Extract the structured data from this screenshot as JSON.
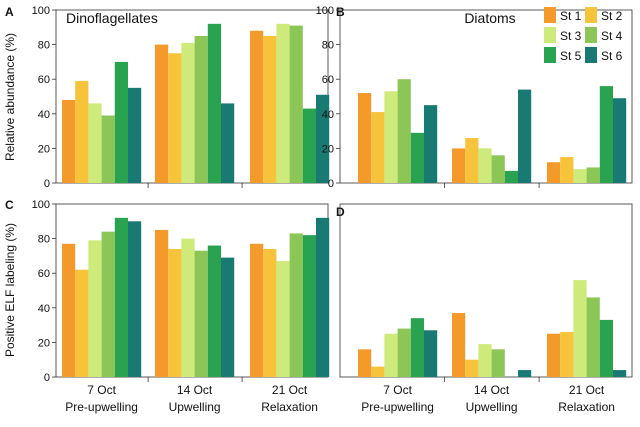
{
  "figure": {
    "y_axis_top": "Relative abundance (%)",
    "y_axis_bottom": "Positive ELF labeling (%)"
  },
  "legend": {
    "position": "top-right",
    "entries": [
      {
        "name": "St 1",
        "color": "#f39a2b"
      },
      {
        "name": "St 2",
        "color": "#f6c33a"
      },
      {
        "name": "St 3",
        "color": "#cdea7a"
      },
      {
        "name": "St 4",
        "color": "#8cc657"
      },
      {
        "name": "St 5",
        "color": "#2aa351"
      },
      {
        "name": "St 6",
        "color": "#187a73"
      }
    ]
  },
  "chart_data": [
    {
      "type": "bar",
      "panel": "A",
      "title": "Dinoflagellates",
      "ylabel": "Relative abundance (%)",
      "ylim": [
        0,
        100
      ],
      "yticks": [
        0,
        20,
        40,
        60,
        80,
        100
      ],
      "categories": [
        "7 Oct",
        "14 Oct",
        "21 Oct"
      ],
      "category_sublabels": [],
      "series": [
        {
          "name": "St 1",
          "values": [
            48,
            80,
            88
          ]
        },
        {
          "name": "St 2",
          "values": [
            59,
            75,
            85
          ]
        },
        {
          "name": "St 3",
          "values": [
            46,
            81,
            92
          ]
        },
        {
          "name": "St 4",
          "values": [
            39,
            85,
            91
          ]
        },
        {
          "name": "St 5",
          "values": [
            70,
            92,
            43
          ]
        },
        {
          "name": "St 6",
          "values": [
            55,
            46,
            51
          ]
        }
      ]
    },
    {
      "type": "bar",
      "panel": "B",
      "title": "Diatoms",
      "ylabel": "",
      "ylim": [
        0,
        100
      ],
      "yticks": [
        0,
        20,
        40,
        60,
        80,
        100
      ],
      "categories": [
        "7 Oct",
        "14 Oct",
        "21 Oct"
      ],
      "category_sublabels": [],
      "series": [
        {
          "name": "St 1",
          "values": [
            52,
            20,
            12
          ]
        },
        {
          "name": "St 2",
          "values": [
            41,
            26,
            15
          ]
        },
        {
          "name": "St 3",
          "values": [
            53,
            20,
            8
          ]
        },
        {
          "name": "St 4",
          "values": [
            60,
            16,
            9
          ]
        },
        {
          "name": "St 5",
          "values": [
            29,
            7,
            56
          ]
        },
        {
          "name": "St 6",
          "values": [
            45,
            54,
            49
          ]
        }
      ]
    },
    {
      "type": "bar",
      "panel": "C",
      "title": "",
      "ylabel": "Positive ELF labeling (%)",
      "ylim": [
        0,
        100
      ],
      "yticks": [
        0,
        20,
        40,
        60,
        80,
        100
      ],
      "categories": [
        "7 Oct",
        "14 Oct",
        "21 Oct"
      ],
      "category_sublabels": [
        "Pre-upwelling",
        "Upwelling",
        "Relaxation"
      ],
      "series": [
        {
          "name": "St 1",
          "values": [
            77,
            85,
            77
          ]
        },
        {
          "name": "St 2",
          "values": [
            62,
            74,
            74
          ]
        },
        {
          "name": "St 3",
          "values": [
            79,
            80,
            67
          ]
        },
        {
          "name": "St 4",
          "values": [
            84,
            73,
            83
          ]
        },
        {
          "name": "St 5",
          "values": [
            92,
            76,
            82
          ]
        },
        {
          "name": "St 6",
          "values": [
            90,
            69,
            92
          ]
        }
      ]
    },
    {
      "type": "bar",
      "panel": "D",
      "title": "",
      "ylabel": "",
      "ylim": [
        0,
        100
      ],
      "yticks": [],
      "categories": [
        "7 Oct",
        "14 Oct",
        "21 Oct"
      ],
      "category_sublabels": [
        "Pre-upwelling",
        "Upwelling",
        "Relaxation"
      ],
      "series": [
        {
          "name": "St 1",
          "values": [
            16,
            37,
            25
          ]
        },
        {
          "name": "St 2",
          "values": [
            6,
            10,
            26
          ]
        },
        {
          "name": "St 3",
          "values": [
            25,
            19,
            56
          ]
        },
        {
          "name": "St 4",
          "values": [
            28,
            16,
            46
          ]
        },
        {
          "name": "St 5",
          "values": [
            34,
            0,
            33
          ]
        },
        {
          "name": "St 6",
          "values": [
            27,
            4,
            4
          ]
        }
      ]
    }
  ]
}
